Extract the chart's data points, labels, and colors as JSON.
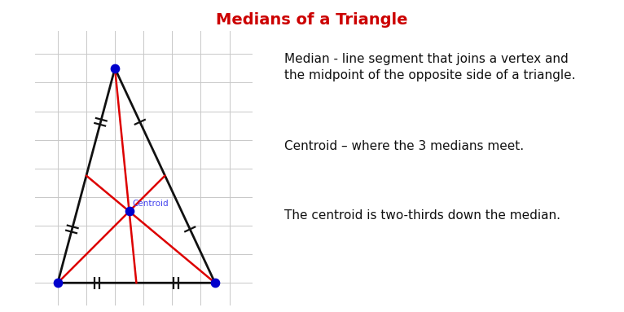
{
  "title": "Medians of a Triangle",
  "title_color": "#cc0000",
  "title_fontsize": 14,
  "background_color": "#ffffff",
  "grid_color": "#c8c8c8",
  "triangle": {
    "A": [
      2.0,
      7.5
    ],
    "B": [
      0.0,
      0.0
    ],
    "C": [
      5.5,
      0.0
    ]
  },
  "vertex_color": "#0000cc",
  "vertex_size": 55,
  "centroid_label": "Centroid",
  "centroid_label_color": "#4444ee",
  "centroid_label_fontsize": 7.5,
  "triangle_color": "#111111",
  "triangle_lw": 2.0,
  "median_color": "#dd0000",
  "median_lw": 1.8,
  "tick_color": "#111111",
  "tick_lw": 1.6,
  "tick_size": 0.22,
  "text_blocks": [
    "Median - line segment that joins a vertex and\nthe midpoint of the opposite side of a triangle.",
    "Centroid – where the 3 medians meet.",
    "The centroid is two-thirds down the median."
  ],
  "text_fontsize": 11.0,
  "text_color": "#111111"
}
